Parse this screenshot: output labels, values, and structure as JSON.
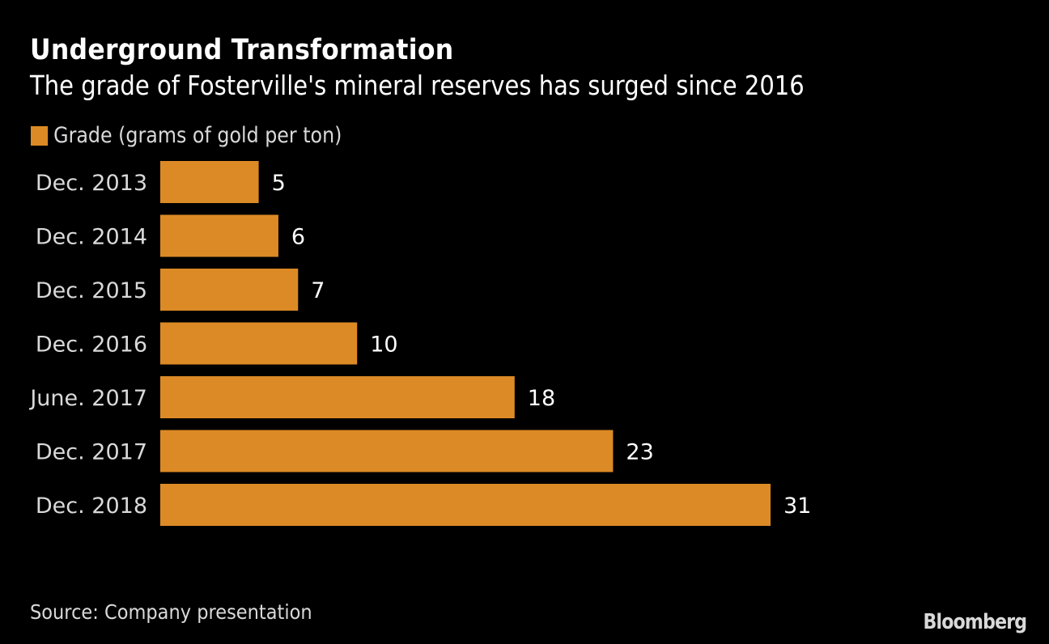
{
  "chart_data": {
    "type": "bar",
    "orientation": "horizontal",
    "title": "Underground Transformation",
    "subtitle": "The grade of Fosterville's mineral reserves has surged since 2016",
    "categories": [
      "Dec. 2013",
      "Dec. 2014",
      "Dec. 2015",
      "Dec. 2016",
      "June. 2017",
      "Dec. 2017",
      "Dec. 2018"
    ],
    "series": [
      {
        "name": "Grade (grams of gold per ton)",
        "values": [
          5,
          6,
          7,
          10,
          18,
          23,
          31
        ],
        "color": "#dc8a25"
      }
    ],
    "xlabel": "",
    "ylabel": "",
    "xlim": [
      0,
      31
    ],
    "grid": false,
    "legend_position": "top-left",
    "data_labels": true
  },
  "footer": {
    "source": "Source: Company presentation",
    "brand": "Bloomberg"
  },
  "colors": {
    "background": "#000000",
    "bar": "#dc8a25",
    "text": "#ffffff",
    "muted_text": "#d9d9d9"
  }
}
